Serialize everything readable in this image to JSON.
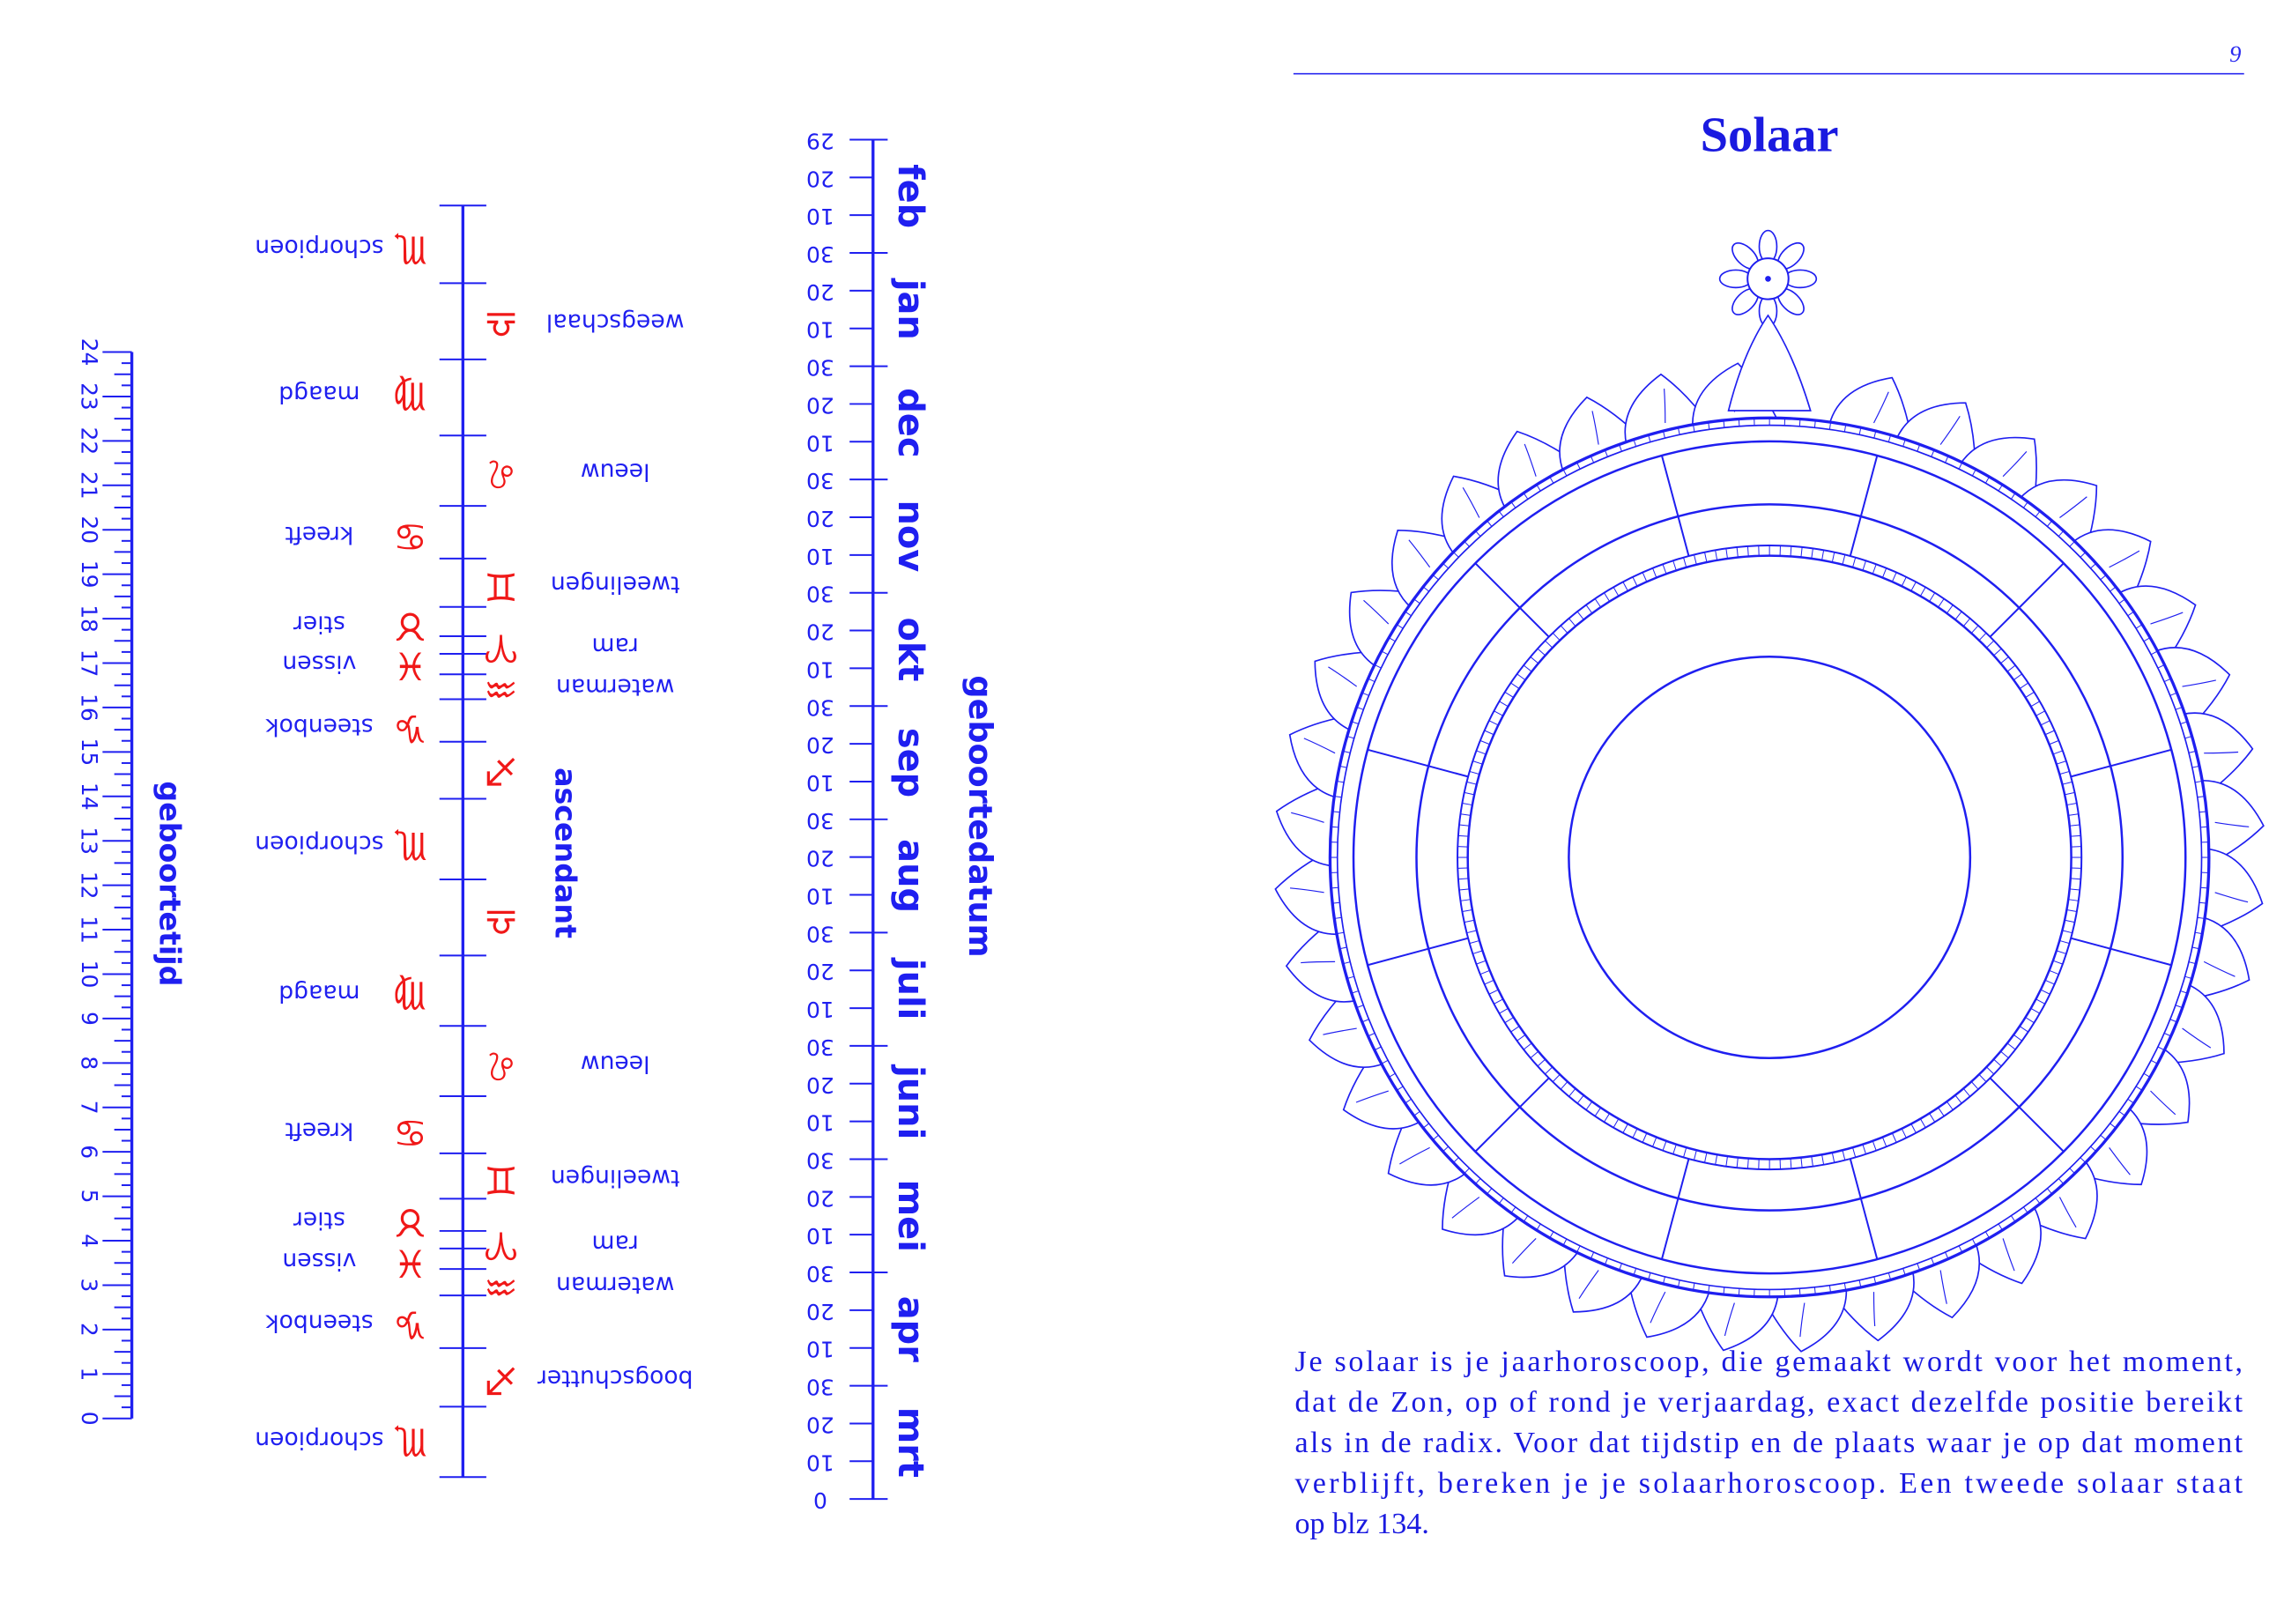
{
  "left_page": {
    "time_scale": {
      "label": "geboortetijd",
      "ticks": [
        "0",
        "1",
        "2",
        "3",
        "4",
        "5",
        "6",
        "7",
        "8",
        "9",
        "10",
        "11",
        "12",
        "13",
        "14",
        "15",
        "16",
        "17",
        "18",
        "19",
        "20",
        "21",
        "22",
        "23",
        "24"
      ]
    },
    "ascendant": {
      "label": "ascendant",
      "signs": [
        {
          "symbol": "♏",
          "name": "schorpioen"
        },
        {
          "symbol": "♎",
          "name": "weegschaal"
        },
        {
          "symbol": "♍",
          "name": "maagd"
        },
        {
          "symbol": "♌",
          "name": "leeuw"
        },
        {
          "symbol": "♋",
          "name": "kreeft"
        },
        {
          "symbol": "♊",
          "name": "tweelingen"
        },
        {
          "symbol": "♉",
          "name": "stier"
        },
        {
          "symbol": "♈",
          "name": "ram"
        },
        {
          "symbol": "♓",
          "name": "vissen"
        },
        {
          "symbol": "♒",
          "name": "waterman"
        },
        {
          "symbol": "♑",
          "name": "steenbok"
        },
        {
          "symbol": "♐"
        },
        {
          "symbol": "♏",
          "name": "schorpioen"
        },
        {
          "symbol": "♎"
        },
        {
          "symbol": "♍",
          "name": "maagd"
        },
        {
          "symbol": "♌",
          "name": "leeuw"
        },
        {
          "symbol": "♋",
          "name": "kreeft"
        },
        {
          "symbol": "♊",
          "name": "tweelingen"
        },
        {
          "symbol": "♉",
          "name": "stier"
        },
        {
          "symbol": "♈",
          "name": "ram"
        },
        {
          "symbol": "♓",
          "name": "vissen"
        },
        {
          "symbol": "♒",
          "name": "waterman"
        },
        {
          "symbol": "♑",
          "name": "steenbok"
        },
        {
          "symbol": "♐",
          "name": "boogschutter"
        },
        {
          "symbol": "♏",
          "name": "schorpioen"
        }
      ]
    },
    "date_scale": {
      "label": "geboortedatum",
      "months": [
        "mrt",
        "apr",
        "mei",
        "juni",
        "juli",
        "aug",
        "sep",
        "okt",
        "nov",
        "dec",
        "jan",
        "feb"
      ],
      "ticks": [
        "0",
        "10",
        "20",
        "30",
        "10",
        "20",
        "30",
        "10",
        "20",
        "30",
        "10",
        "20",
        "30",
        "10",
        "20",
        "30",
        "10",
        "20",
        "30",
        "10",
        "20",
        "30",
        "10",
        "20",
        "30",
        "10",
        "20",
        "30",
        "10",
        "20",
        "30",
        "10",
        "20",
        "30",
        "10",
        "20",
        "29"
      ]
    }
  },
  "right_page": {
    "page_number": "9",
    "title": "Solaar",
    "paragraph": [
      "Je solaar is je jaarhoroscoop, die gemaakt wordt voor het moment,",
      "dat de Zon, op of rond je verjaardag, exact dezelfde positie bereikt",
      "als in de radix. Voor dat tijdstip en de plaats waar je op dat moment",
      "verblijft, bereken je je solaarhoroscoop. Een tweede solaar staat",
      "op blz 134."
    ]
  }
}
